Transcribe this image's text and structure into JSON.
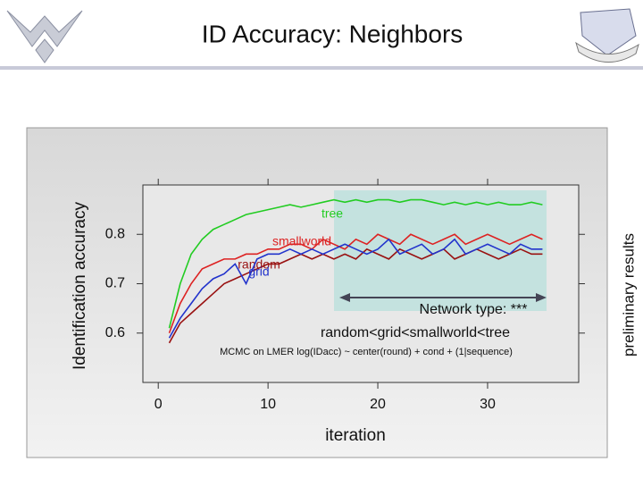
{
  "slide": {
    "title": "ID Accuracy: Neighbors",
    "side_note": "preliminary results"
  },
  "chart_data": {
    "type": "line",
    "x_label": "iteration",
    "y_label": "Identification accuracy",
    "annotations": [
      "Network type: ***",
      "random<grid<smallworld<tree",
      "MCMC on LMER log(IDacc) ~ center(round) + cond + (1|sequence)"
    ],
    "x": [
      1,
      2,
      3,
      4,
      5,
      6,
      7,
      8,
      9,
      10,
      11,
      12,
      13,
      14,
      15,
      16,
      17,
      18,
      19,
      20,
      21,
      22,
      23,
      24,
      25,
      26,
      27,
      28,
      29,
      30,
      31,
      32,
      33,
      34,
      35
    ],
    "series": [
      {
        "name": "tree",
        "color": "#22cc22",
        "values": [
          0.61,
          0.7,
          0.76,
          0.79,
          0.81,
          0.82,
          0.83,
          0.84,
          0.845,
          0.85,
          0.855,
          0.86,
          0.855,
          0.86,
          0.865,
          0.87,
          0.865,
          0.87,
          0.865,
          0.87,
          0.87,
          0.865,
          0.87,
          0.87,
          0.865,
          0.86,
          0.865,
          0.86,
          0.865,
          0.86,
          0.865,
          0.86,
          0.86,
          0.865,
          0.86
        ]
      },
      {
        "name": "smallworld",
        "color": "#dd2222",
        "values": [
          0.6,
          0.66,
          0.7,
          0.73,
          0.74,
          0.75,
          0.75,
          0.76,
          0.76,
          0.77,
          0.77,
          0.78,
          0.78,
          0.77,
          0.79,
          0.78,
          0.77,
          0.79,
          0.78,
          0.8,
          0.79,
          0.78,
          0.8,
          0.79,
          0.78,
          0.79,
          0.8,
          0.78,
          0.79,
          0.8,
          0.79,
          0.78,
          0.79,
          0.8,
          0.79
        ]
      },
      {
        "name": "random",
        "color": "#991111",
        "values": [
          0.58,
          0.62,
          0.64,
          0.66,
          0.68,
          0.7,
          0.71,
          0.72,
          0.73,
          0.74,
          0.74,
          0.75,
          0.76,
          0.75,
          0.76,
          0.75,
          0.76,
          0.75,
          0.77,
          0.76,
          0.75,
          0.77,
          0.76,
          0.75,
          0.76,
          0.77,
          0.75,
          0.76,
          0.77,
          0.76,
          0.75,
          0.76,
          0.77,
          0.76,
          0.76
        ]
      },
      {
        "name": "grid",
        "color": "#2233cc",
        "values": [
          0.59,
          0.63,
          0.66,
          0.69,
          0.71,
          0.72,
          0.74,
          0.7,
          0.75,
          0.76,
          0.76,
          0.77,
          0.76,
          0.77,
          0.76,
          0.77,
          0.78,
          0.77,
          0.76,
          0.77,
          0.79,
          0.76,
          0.77,
          0.78,
          0.76,
          0.77,
          0.79,
          0.76,
          0.77,
          0.78,
          0.77,
          0.76,
          0.78,
          0.77,
          0.77
        ]
      }
    ],
    "xlim": [
      -1.4,
      38.3
    ],
    "ylim": [
      0.5,
      0.9
    ],
    "xticks": [
      0,
      10,
      20,
      30
    ],
    "yticks": [
      0.6,
      0.7,
      0.8
    ]
  }
}
